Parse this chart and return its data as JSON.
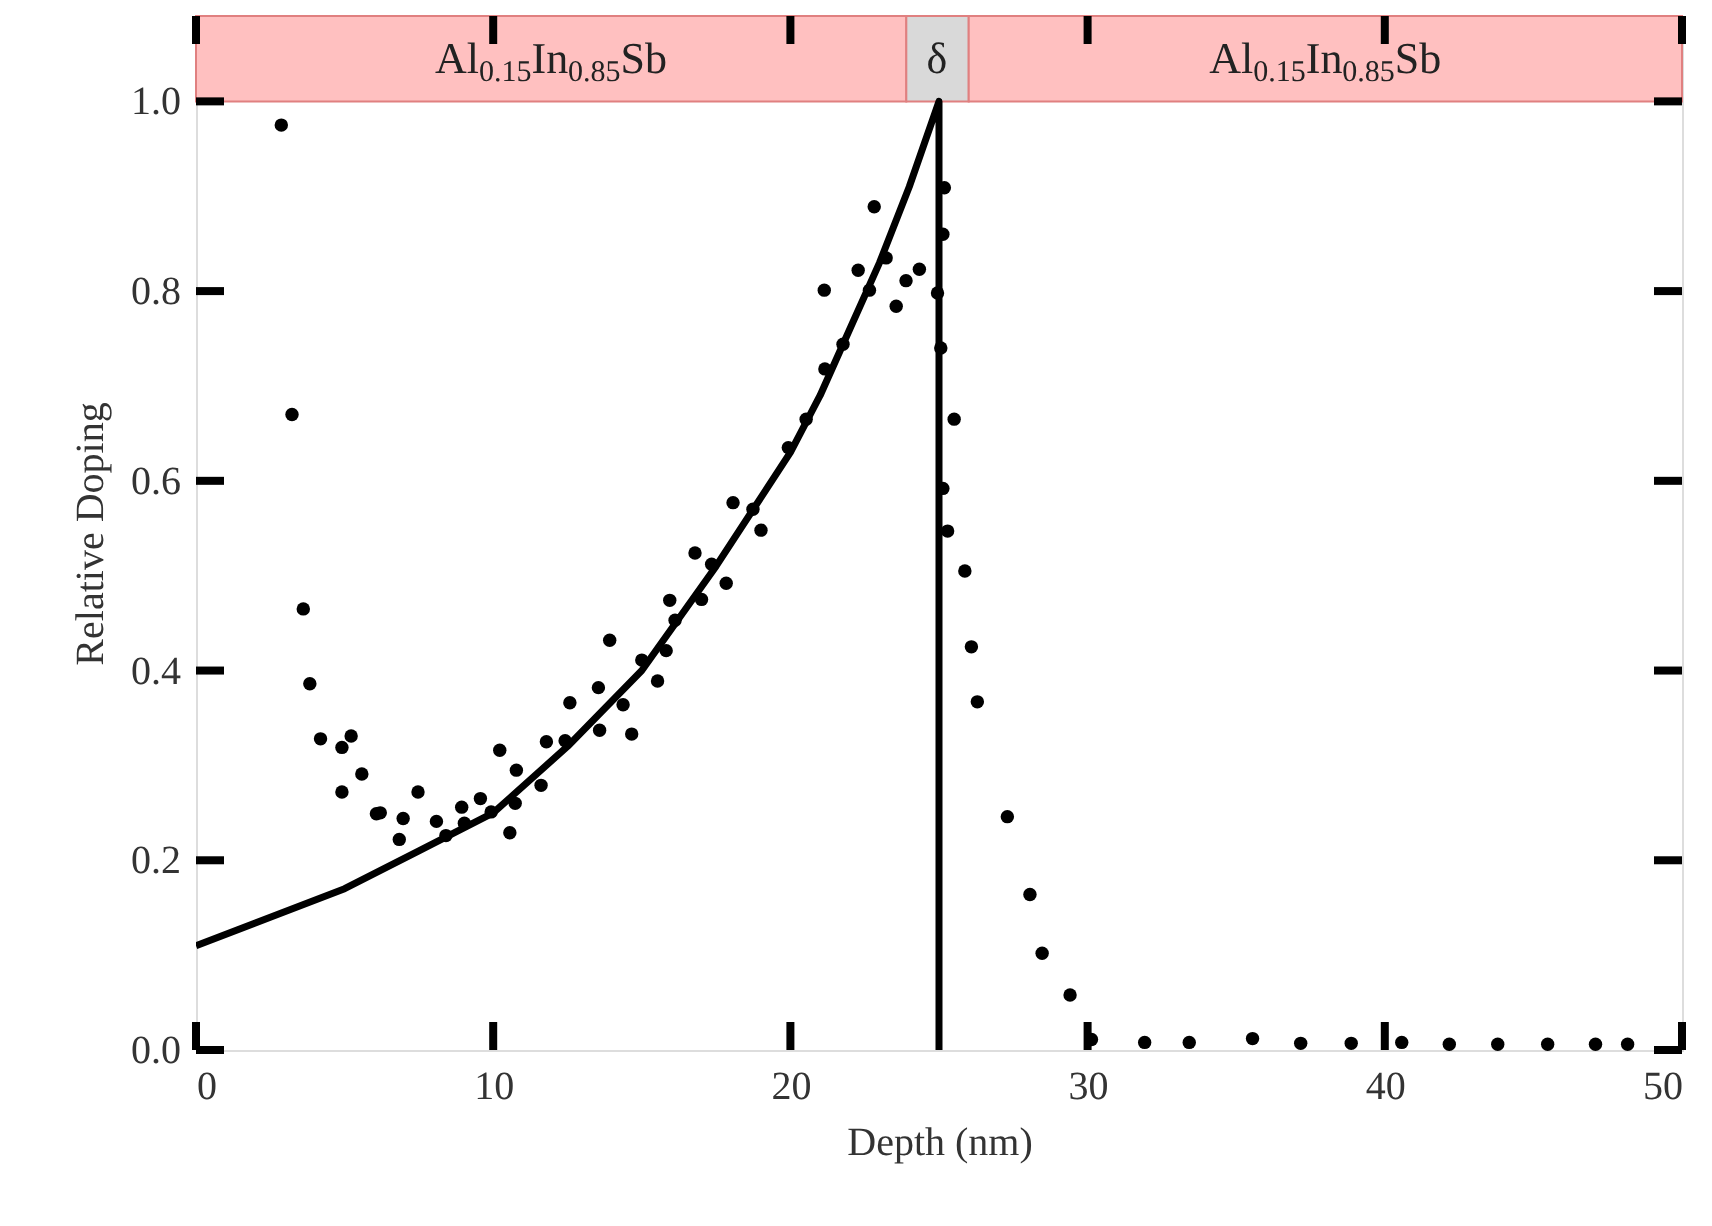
{
  "chart_data": {
    "type": "scatter",
    "xlabel": "Depth (nm)",
    "ylabel": "Relative Doping",
    "xlim": [
      0,
      50
    ],
    "xticks": [
      0,
      10,
      20,
      30,
      40,
      50
    ],
    "ylim": [
      0,
      1.09
    ],
    "yticks": [
      {
        "value": 0,
        "label": "0.0"
      },
      {
        "value": 0.2,
        "label": "0.2"
      },
      {
        "value": 0.4,
        "label": "0.4"
      },
      {
        "value": 0.6,
        "label": "0.6"
      },
      {
        "value": 0.8,
        "label": "0.8"
      },
      {
        "value": 1.0,
        "label": "1.0"
      }
    ],
    "grid": false,
    "bands": [
      {
        "axis": "x",
        "from": 0,
        "to": 23.9,
        "label": "Al$_{0.15}$In$_{0.85}$Sb",
        "color": "#ffc0c0"
      },
      {
        "axis": "x",
        "from": 23.9,
        "to": 26.0,
        "label": "δ",
        "color": "#d9d9d9"
      },
      {
        "axis": "x",
        "from": 26.0,
        "to": 50,
        "label": "Al$_{0.15}$In$_{0.85}$Sb",
        "color": "#ffc0c0"
      }
    ],
    "series": [
      {
        "color": "#000000",
        "marker": "circle",
        "x": [
          2.87,
          3.23,
          3.61,
          3.83,
          4.19,
          4.91,
          5.22,
          4.91,
          5.58,
          6.07,
          6.2,
          6.97,
          6.84,
          7.47,
          8.09,
          8.41,
          8.94,
          9.03,
          9.57,
          9.93,
          10.22,
          10.56,
          10.74,
          10.78,
          11.61,
          11.79,
          12.42,
          12.58,
          13.54,
          13.58,
          13.92,
          14.37,
          14.66,
          15.0,
          15.53,
          15.82,
          15.94,
          16.12,
          16.79,
          17.01,
          17.35,
          17.84,
          18.07,
          18.74,
          19.01,
          19.93,
          20.53,
          21.16,
          21.77,
          21.14,
          22.28,
          22.66,
          23.22,
          23.56,
          23.89,
          24.34,
          22.82,
          25.18,
          25.13,
          24.95,
          25.06,
          25.51,
          25.13,
          25.29,
          25.87,
          26.09,
          26.29,
          27.3,
          28.06,
          28.47,
          29.41,
          30.13,
          31.92,
          33.42,
          35.55,
          37.17,
          38.87,
          40.57,
          42.17,
          43.8,
          45.48,
          47.09,
          48.17
        ],
        "values": [
          0.975,
          0.67,
          0.465,
          0.386,
          0.328,
          0.319,
          0.331,
          0.272,
          0.291,
          0.249,
          0.25,
          0.244,
          0.222,
          0.272,
          0.241,
          0.226,
          0.256,
          0.239,
          0.265,
          0.251,
          0.316,
          0.229,
          0.26,
          0.295,
          0.279,
          0.325,
          0.326,
          0.366,
          0.382,
          0.337,
          0.432,
          0.364,
          0.333,
          0.411,
          0.389,
          0.421,
          0.474,
          0.453,
          0.524,
          0.475,
          0.512,
          0.492,
          0.577,
          0.57,
          0.548,
          0.635,
          0.665,
          0.718,
          0.744,
          0.801,
          0.822,
          0.801,
          0.835,
          0.784,
          0.811,
          0.823,
          0.889,
          0.909,
          0.86,
          0.798,
          0.74,
          0.665,
          0.592,
          0.547,
          0.505,
          0.425,
          0.367,
          0.246,
          0.164,
          0.102,
          0.058,
          0.011,
          0.008,
          0.008,
          0.012,
          0.007,
          0.007,
          0.008,
          0.006,
          0.006,
          0.006,
          0.006,
          0.006
        ]
      },
      {
        "type": "line",
        "color": "#000000",
        "marker": "none",
        "line_style": "solid",
        "x": [
          0,
          2.5,
          5,
          7.5,
          10,
          12.5,
          15,
          17.5,
          20,
          21,
          22,
          23,
          24,
          25,
          25
        ],
        "values": [
          0.11,
          0.14,
          0.17,
          0.21,
          0.25,
          0.32,
          0.4,
          0.51,
          0.63,
          0.69,
          0.76,
          0.83,
          0.91,
          1.0,
          0.0
        ]
      }
    ]
  }
}
